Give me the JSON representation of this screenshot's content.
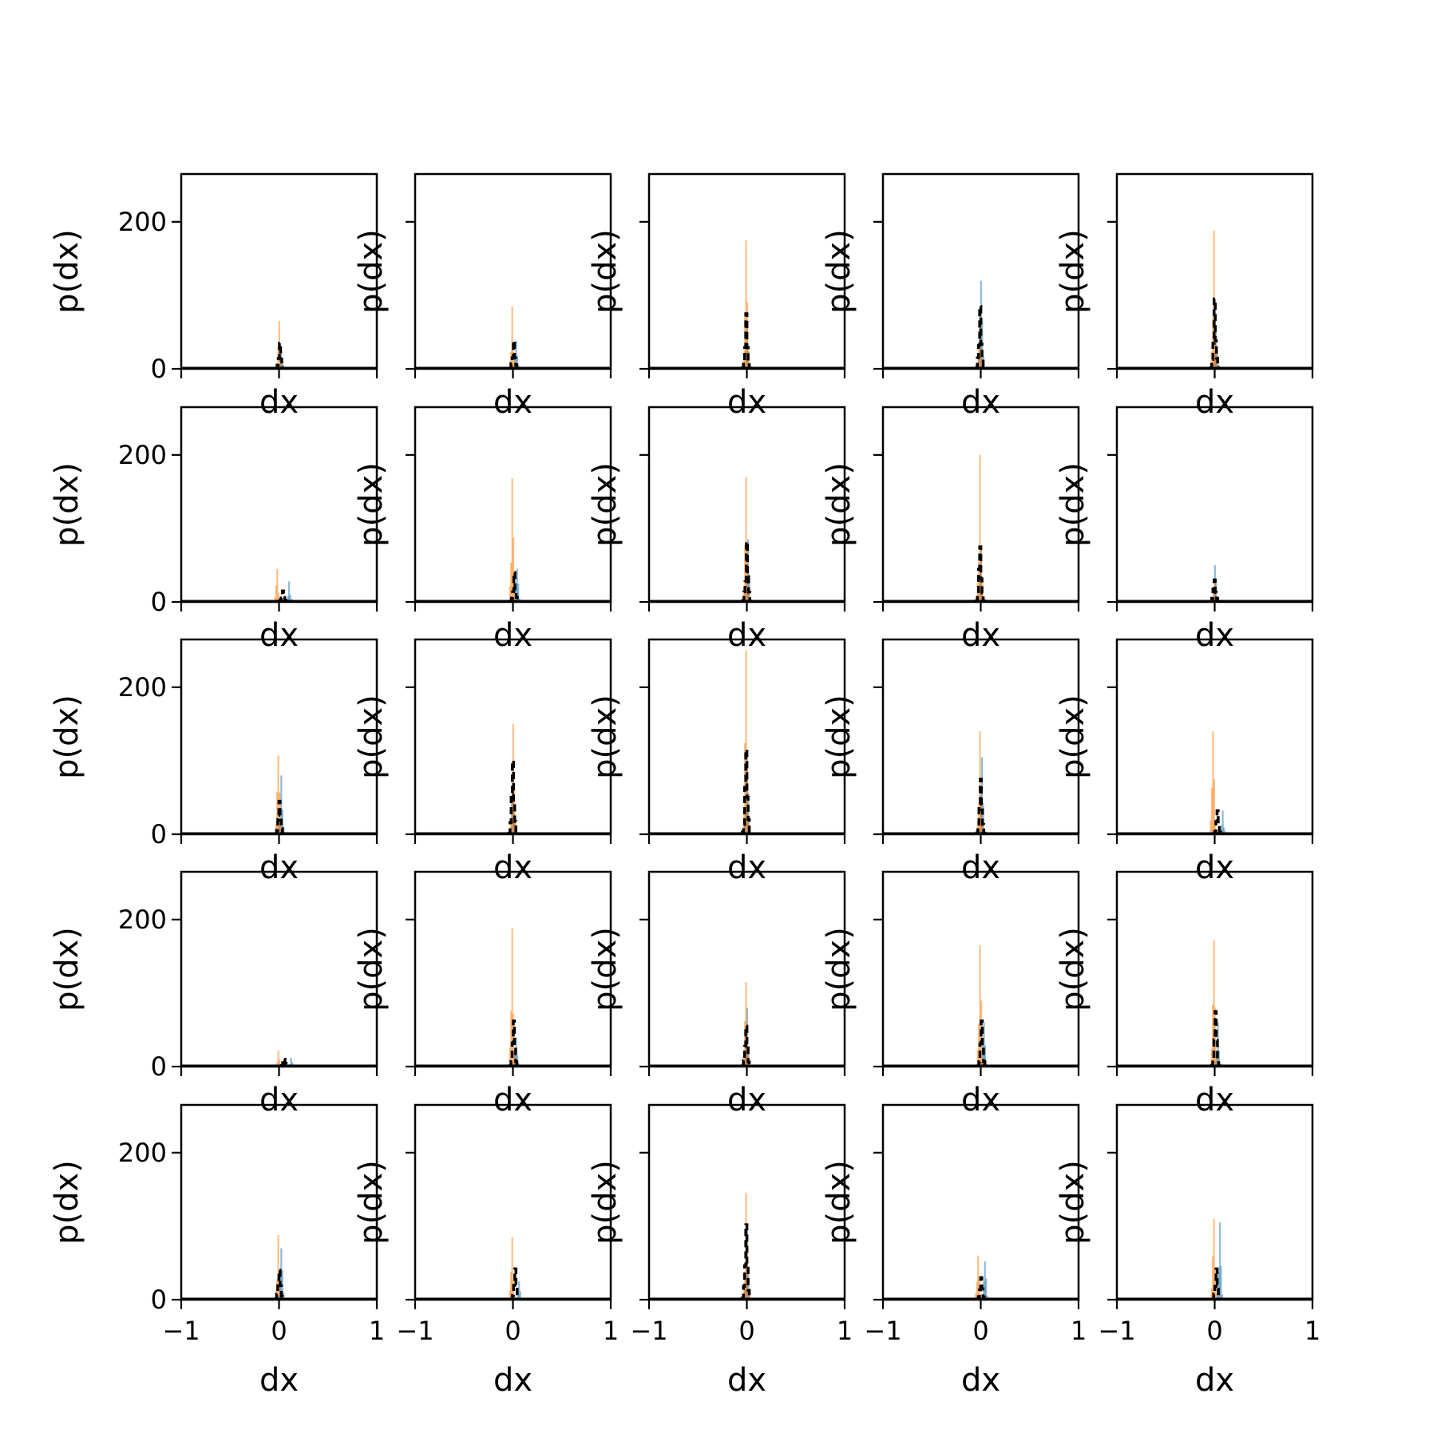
{
  "colors": {
    "series_blue": "#1f77b4",
    "series_orange": "#ff7f0e",
    "dashed_line": "#000000",
    "axes": "#000000",
    "background": "#ffffff"
  },
  "chart_data": {
    "type": "bar",
    "layout": "5x5 grid of histogram subplots",
    "xlabel": "dx",
    "ylabel": "p(dx)",
    "xlim": [
      -1,
      1
    ],
    "ylim": [
      0,
      265
    ],
    "xticks": [
      -1,
      0,
      1
    ],
    "yticks": [
      0,
      200
    ],
    "xtick_labels": [
      "−1",
      "0",
      "1"
    ],
    "ytick_labels": [
      "0",
      "200"
    ],
    "grid": false,
    "legend": "none",
    "series_description": "Each panel overlays two semi-transparent histograms (blue, orange) and one black dashed step histogram of dx",
    "panels": [
      {
        "row": 0,
        "col": 0,
        "blue_peak": 25,
        "orange_peak": 65,
        "black_peak": 35,
        "blue_center": 0.02,
        "orange_center": 0.0
      },
      {
        "row": 0,
        "col": 1,
        "blue_peak": 38,
        "orange_peak": 85,
        "black_peak": 38,
        "blue_center": 0.03,
        "orange_center": -0.01
      },
      {
        "row": 0,
        "col": 2,
        "blue_peak": 65,
        "orange_peak": 175,
        "black_peak": 75,
        "blue_center": 0.0,
        "orange_center": -0.01
      },
      {
        "row": 0,
        "col": 3,
        "blue_peak": 120,
        "orange_peak": 60,
        "black_peak": 85,
        "blue_center": 0.0,
        "orange_center": -0.01
      },
      {
        "row": 0,
        "col": 4,
        "blue_peak": 55,
        "orange_peak": 188,
        "black_peak": 95,
        "blue_center": 0.01,
        "orange_center": -0.01
      },
      {
        "row": 1,
        "col": 0,
        "blue_peak": 28,
        "orange_peak": 45,
        "black_peak": 15,
        "blue_center": 0.1,
        "orange_center": -0.02
      },
      {
        "row": 1,
        "col": 1,
        "blue_peak": 45,
        "orange_peak": 168,
        "black_peak": 40,
        "blue_center": 0.04,
        "orange_center": -0.01
      },
      {
        "row": 1,
        "col": 2,
        "blue_peak": 85,
        "orange_peak": 170,
        "black_peak": 82,
        "blue_center": 0.01,
        "orange_center": -0.01
      },
      {
        "row": 1,
        "col": 3,
        "blue_peak": 70,
        "orange_peak": 200,
        "black_peak": 75,
        "blue_center": 0.0,
        "orange_center": -0.01
      },
      {
        "row": 1,
        "col": 4,
        "blue_peak": 50,
        "orange_peak": 28,
        "black_peak": 30,
        "blue_center": 0.0,
        "orange_center": 0.0
      },
      {
        "row": 2,
        "col": 0,
        "blue_peak": 80,
        "orange_peak": 107,
        "black_peak": 45,
        "blue_center": 0.02,
        "orange_center": -0.01
      },
      {
        "row": 2,
        "col": 1,
        "blue_peak": 95,
        "orange_peak": 150,
        "black_peak": 100,
        "blue_center": 0.0,
        "orange_center": 0.0
      },
      {
        "row": 2,
        "col": 2,
        "blue_peak": 110,
        "orange_peak": 250,
        "black_peak": 115,
        "blue_center": 0.0,
        "orange_center": -0.01
      },
      {
        "row": 2,
        "col": 3,
        "blue_peak": 105,
        "orange_peak": 140,
        "black_peak": 75,
        "blue_center": 0.01,
        "orange_center": -0.01
      },
      {
        "row": 2,
        "col": 4,
        "blue_peak": 32,
        "orange_peak": 140,
        "black_peak": 32,
        "blue_center": 0.08,
        "orange_center": -0.02
      },
      {
        "row": 3,
        "col": 0,
        "blue_peak": 12,
        "orange_peak": 22,
        "black_peak": 10,
        "blue_center": 0.12,
        "orange_center": -0.01
      },
      {
        "row": 3,
        "col": 1,
        "blue_peak": 40,
        "orange_peak": 188,
        "black_peak": 62,
        "blue_center": 0.03,
        "orange_center": -0.01
      },
      {
        "row": 3,
        "col": 2,
        "blue_peak": 80,
        "orange_peak": 115,
        "black_peak": 55,
        "blue_center": 0.0,
        "orange_center": -0.01
      },
      {
        "row": 3,
        "col": 3,
        "blue_peak": 60,
        "orange_peak": 165,
        "black_peak": 62,
        "blue_center": 0.03,
        "orange_center": -0.01
      },
      {
        "row": 3,
        "col": 4,
        "blue_peak": 60,
        "orange_peak": 172,
        "black_peak": 75,
        "blue_center": 0.03,
        "orange_center": -0.01
      },
      {
        "row": 4,
        "col": 0,
        "blue_peak": 70,
        "orange_peak": 88,
        "black_peak": 40,
        "blue_center": 0.02,
        "orange_center": -0.01
      },
      {
        "row": 4,
        "col": 1,
        "blue_peak": 25,
        "orange_peak": 85,
        "black_peak": 42,
        "blue_center": 0.06,
        "orange_center": -0.01
      },
      {
        "row": 4,
        "col": 2,
        "blue_peak": 100,
        "orange_peak": 145,
        "black_peak": 102,
        "blue_center": 0.0,
        "orange_center": -0.01
      },
      {
        "row": 4,
        "col": 3,
        "blue_peak": 52,
        "orange_peak": 60,
        "black_peak": 30,
        "blue_center": 0.04,
        "orange_center": -0.03
      },
      {
        "row": 4,
        "col": 4,
        "blue_peak": 105,
        "orange_peak": 110,
        "black_peak": 42,
        "blue_center": 0.05,
        "orange_center": -0.01
      }
    ]
  }
}
